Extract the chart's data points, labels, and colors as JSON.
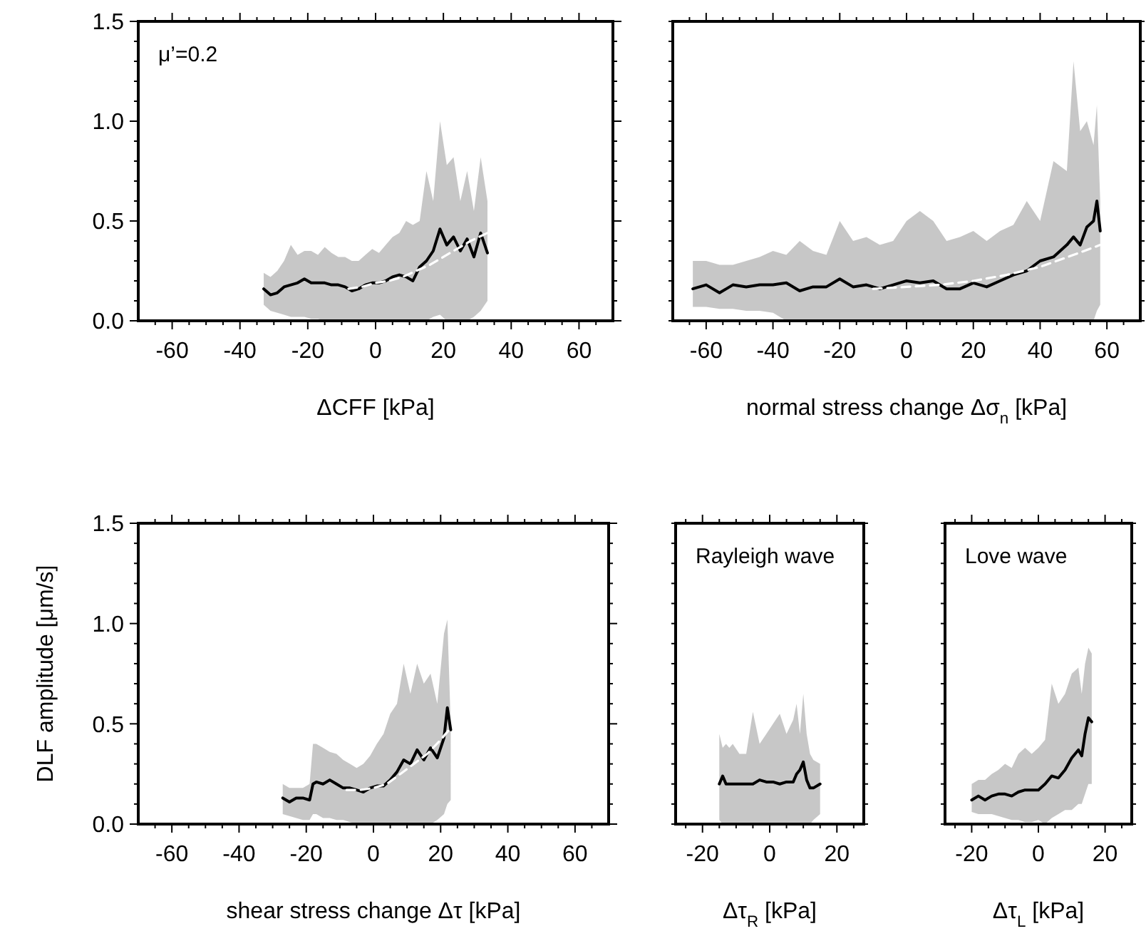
{
  "chart_data": [
    {
      "type": "line",
      "xlabel": "ΔCFF [kPa]",
      "annotations": [
        "μ’=0.2"
      ],
      "xlim": [
        -70,
        70
      ],
      "ylim": [
        0,
        1.5
      ],
      "xticks": [
        {
          "value": -65,
          "label": null
        },
        -60,
        {
          "value": -55,
          "label": null
        },
        {
          "value": -50,
          "label": null
        },
        {
          "value": -45,
          "label": null
        },
        -40,
        {
          "value": -35,
          "label": null
        },
        {
          "value": -30,
          "label": null
        },
        {
          "value": -25,
          "label": null
        },
        -20,
        {
          "value": -15,
          "label": null
        },
        {
          "value": -10,
          "label": null
        },
        {
          "value": -5,
          "label": null
        },
        0,
        {
          "value": 5,
          "label": null
        },
        {
          "value": 10,
          "label": null
        },
        {
          "value": 15,
          "label": null
        },
        20,
        {
          "value": 25,
          "label": null
        },
        {
          "value": 30,
          "label": null
        },
        {
          "value": 35,
          "label": null
        },
        40,
        {
          "value": 45,
          "label": null
        },
        {
          "value": 50,
          "label": null
        },
        {
          "value": 55,
          "label": null
        },
        60,
        {
          "value": 65,
          "label": null
        }
      ],
      "yticks": [
        {
          "value": 0,
          "label": "0.0"
        },
        {
          "value": 0.1,
          "label": null
        },
        {
          "value": 0.2,
          "label": null
        },
        {
          "value": 0.3,
          "label": null
        },
        {
          "value": 0.4,
          "label": null
        },
        {
          "value": 0.5,
          "label": "0.5"
        },
        {
          "value": 0.6,
          "label": null
        },
        {
          "value": 0.7,
          "label": null
        },
        {
          "value": 0.8,
          "label": null
        },
        {
          "value": 0.9,
          "label": null
        },
        {
          "value": 1,
          "label": "1.0"
        },
        {
          "value": 1.1,
          "label": null
        },
        {
          "value": 1.2,
          "label": null
        },
        {
          "value": 1.3,
          "label": null
        },
        {
          "value": 1.4,
          "label": null
        },
        {
          "value": 1.5,
          "label": "1.5"
        }
      ],
      "series": [
        {
          "color": "#000000",
          "x": [
            -33,
            -31,
            -29,
            -27,
            -25,
            -23,
            -21,
            -19,
            -17,
            -15,
            -13,
            -11,
            -9,
            -7,
            -5,
            -3,
            -1,
            1,
            3,
            5,
            7,
            9,
            11,
            13,
            15,
            17,
            19,
            21,
            23,
            25,
            27,
            29,
            31,
            33
          ],
          "values": [
            0.16,
            0.13,
            0.14,
            0.17,
            0.18,
            0.19,
            0.21,
            0.19,
            0.19,
            0.19,
            0.18,
            0.18,
            0.17,
            0.15,
            0.16,
            0.18,
            0.19,
            0.19,
            0.2,
            0.22,
            0.23,
            0.22,
            0.2,
            0.27,
            0.3,
            0.35,
            0.46,
            0.38,
            0.42,
            0.35,
            0.41,
            0.32,
            0.44,
            0.34
          ],
          "upper": [
            0.24,
            0.22,
            0.25,
            0.3,
            0.38,
            0.33,
            0.35,
            0.35,
            0.33,
            0.37,
            0.34,
            0.32,
            0.32,
            0.3,
            0.3,
            0.33,
            0.36,
            0.34,
            0.38,
            0.42,
            0.44,
            0.5,
            0.48,
            0.5,
            0.75,
            0.6,
            1.0,
            0.78,
            0.82,
            0.6,
            0.75,
            0.55,
            0.82,
            0.6
          ],
          "lower": [
            0.08,
            0.05,
            0.04,
            0.03,
            0.02,
            0.02,
            0.02,
            0.01,
            0.01,
            0,
            0,
            0,
            0,
            0,
            0,
            0,
            0,
            0,
            0,
            0,
            0,
            0,
            0,
            0,
            0,
            0.02,
            0.03,
            0,
            0,
            0,
            0,
            0.02,
            0.05,
            0.1
          ]
        },
        {
          "type": "line",
          "color": "#ffffff",
          "line_style": "dashed",
          "x": [
            -8,
            -4,
            0,
            4,
            8,
            12,
            16,
            20,
            24,
            28,
            33
          ],
          "values": [
            0.16,
            0.17,
            0.19,
            0.2,
            0.22,
            0.25,
            0.28,
            0.32,
            0.36,
            0.4,
            0.44
          ]
        }
      ]
    },
    {
      "type": "line",
      "xlabel": "normal stress change Δσ$_{n}$ [kPa]",
      "tick_labels": "x",
      "xlim": [
        -70,
        70
      ],
      "ylim": [
        0,
        1.5
      ],
      "xticks": [
        {
          "value": -65,
          "label": null
        },
        -60,
        {
          "value": -55,
          "label": null
        },
        {
          "value": -50,
          "label": null
        },
        {
          "value": -45,
          "label": null
        },
        -40,
        {
          "value": -35,
          "label": null
        },
        {
          "value": -30,
          "label": null
        },
        {
          "value": -25,
          "label": null
        },
        -20,
        {
          "value": -15,
          "label": null
        },
        {
          "value": -10,
          "label": null
        },
        {
          "value": -5,
          "label": null
        },
        0,
        {
          "value": 5,
          "label": null
        },
        {
          "value": 10,
          "label": null
        },
        {
          "value": 15,
          "label": null
        },
        20,
        {
          "value": 25,
          "label": null
        },
        {
          "value": 30,
          "label": null
        },
        {
          "value": 35,
          "label": null
        },
        40,
        {
          "value": 45,
          "label": null
        },
        {
          "value": 50,
          "label": null
        },
        {
          "value": 55,
          "label": null
        },
        60,
        {
          "value": 65,
          "label": null
        }
      ],
      "yticks": [
        {
          "value": 0,
          "label": null
        },
        {
          "value": 0.1,
          "label": null
        },
        {
          "value": 0.2,
          "label": null
        },
        {
          "value": 0.3,
          "label": null
        },
        {
          "value": 0.4,
          "label": null
        },
        {
          "value": 0.5,
          "label": null
        },
        {
          "value": 0.6,
          "label": null
        },
        {
          "value": 0.7,
          "label": null
        },
        {
          "value": 0.8,
          "label": null
        },
        {
          "value": 0.9,
          "label": null
        },
        {
          "value": 1,
          "label": null
        },
        {
          "value": 1.1,
          "label": null
        },
        {
          "value": 1.2,
          "label": null
        },
        {
          "value": 1.3,
          "label": null
        },
        {
          "value": 1.4,
          "label": null
        },
        {
          "value": 1.5,
          "label": null
        }
      ],
      "series": [
        {
          "color": "#000000",
          "x": [
            -64,
            -60,
            -56,
            -52,
            -48,
            -44,
            -40,
            -36,
            -32,
            -28,
            -24,
            -20,
            -16,
            -12,
            -8,
            -4,
            0,
            4,
            8,
            12,
            16,
            20,
            24,
            28,
            32,
            36,
            40,
            44,
            48,
            50,
            52,
            54,
            56,
            57,
            58
          ],
          "values": [
            0.16,
            0.18,
            0.14,
            0.18,
            0.17,
            0.18,
            0.18,
            0.19,
            0.15,
            0.17,
            0.17,
            0.21,
            0.17,
            0.18,
            0.16,
            0.18,
            0.2,
            0.19,
            0.2,
            0.16,
            0.16,
            0.19,
            0.17,
            0.2,
            0.23,
            0.25,
            0.3,
            0.32,
            0.38,
            0.42,
            0.38,
            0.47,
            0.5,
            0.6,
            0.45
          ],
          "upper": [
            0.3,
            0.3,
            0.28,
            0.28,
            0.3,
            0.32,
            0.35,
            0.33,
            0.4,
            0.35,
            0.33,
            0.5,
            0.4,
            0.42,
            0.38,
            0.4,
            0.5,
            0.55,
            0.5,
            0.4,
            0.42,
            0.45,
            0.4,
            0.45,
            0.48,
            0.6,
            0.5,
            0.8,
            0.75,
            1.3,
            0.95,
            1.0,
            0.88,
            1.08,
            0.6
          ],
          "lower": [
            0.07,
            0.07,
            0.06,
            0.06,
            0.05,
            0.05,
            0.04,
            0,
            0,
            0,
            0,
            0,
            0,
            0,
            0,
            0,
            0,
            0,
            0,
            0,
            0,
            0,
            0,
            0,
            0,
            0,
            0,
            0,
            0,
            0,
            0,
            0,
            0,
            0.05,
            0.08
          ]
        },
        {
          "type": "line",
          "color": "#ffffff",
          "line_style": "dashed",
          "x": [
            -10,
            0,
            10,
            20,
            30,
            40,
            50,
            58
          ],
          "values": [
            0.16,
            0.17,
            0.18,
            0.2,
            0.23,
            0.27,
            0.33,
            0.38
          ]
        }
      ]
    },
    {
      "type": "line",
      "xlabel": "shear stress change Δτ [kPa]",
      "ylabel": "DLF amplitude [μm/s]",
      "xlim": [
        -70,
        70
      ],
      "ylim": [
        0,
        1.5
      ],
      "xticks": [
        {
          "value": -65,
          "label": null
        },
        -60,
        {
          "value": -55,
          "label": null
        },
        {
          "value": -50,
          "label": null
        },
        {
          "value": -45,
          "label": null
        },
        -40,
        {
          "value": -35,
          "label": null
        },
        {
          "value": -30,
          "label": null
        },
        {
          "value": -25,
          "label": null
        },
        -20,
        {
          "value": -15,
          "label": null
        },
        {
          "value": -10,
          "label": null
        },
        {
          "value": -5,
          "label": null
        },
        0,
        {
          "value": 5,
          "label": null
        },
        {
          "value": 10,
          "label": null
        },
        {
          "value": 15,
          "label": null
        },
        20,
        {
          "value": 25,
          "label": null
        },
        {
          "value": 30,
          "label": null
        },
        {
          "value": 35,
          "label": null
        },
        40,
        {
          "value": 45,
          "label": null
        },
        {
          "value": 50,
          "label": null
        },
        {
          "value": 55,
          "label": null
        },
        60,
        {
          "value": 65,
          "label": null
        }
      ],
      "yticks": [
        {
          "value": 0,
          "label": "0.0"
        },
        {
          "value": 0.1,
          "label": null
        },
        {
          "value": 0.2,
          "label": null
        },
        {
          "value": 0.3,
          "label": null
        },
        {
          "value": 0.4,
          "label": null
        },
        {
          "value": 0.5,
          "label": "0.5"
        },
        {
          "value": 0.6,
          "label": null
        },
        {
          "value": 0.7,
          "label": null
        },
        {
          "value": 0.8,
          "label": null
        },
        {
          "value": 0.9,
          "label": null
        },
        {
          "value": 1,
          "label": "1.0"
        },
        {
          "value": 1.1,
          "label": null
        },
        {
          "value": 1.2,
          "label": null
        },
        {
          "value": 1.3,
          "label": null
        },
        {
          "value": 1.4,
          "label": null
        },
        {
          "value": 1.5,
          "label": "1.5"
        }
      ],
      "series": [
        {
          "color": "#000000",
          "x": [
            -27,
            -25,
            -23,
            -21,
            -19,
            -18,
            -17,
            -15,
            -13,
            -11,
            -9,
            -7,
            -5,
            -3,
            -1,
            1,
            3,
            5,
            7,
            9,
            11,
            13,
            15,
            17,
            19,
            21,
            22,
            23
          ],
          "values": [
            0.13,
            0.11,
            0.13,
            0.13,
            0.12,
            0.2,
            0.21,
            0.2,
            0.22,
            0.2,
            0.18,
            0.18,
            0.17,
            0.16,
            0.18,
            0.19,
            0.19,
            0.22,
            0.26,
            0.32,
            0.3,
            0.37,
            0.32,
            0.38,
            0.33,
            0.43,
            0.58,
            0.47
          ],
          "upper": [
            0.2,
            0.18,
            0.18,
            0.18,
            0.2,
            0.4,
            0.4,
            0.38,
            0.36,
            0.35,
            0.32,
            0.3,
            0.28,
            0.3,
            0.34,
            0.4,
            0.45,
            0.55,
            0.6,
            0.8,
            0.65,
            0.8,
            0.7,
            0.75,
            0.6,
            0.95,
            1.02,
            0.5
          ],
          "lower": [
            0.05,
            0.04,
            0.03,
            0.02,
            0.02,
            0.05,
            0.05,
            0.03,
            0.03,
            0.02,
            0.02,
            0.01,
            0,
            0,
            0,
            0,
            0,
            0,
            0,
            0,
            0,
            0,
            0,
            0,
            0.02,
            0.05,
            0.1,
            0.12
          ]
        },
        {
          "type": "line",
          "color": "#ffffff",
          "line_style": "dashed",
          "x": [
            -8,
            -4,
            0,
            4,
            8,
            12,
            16,
            20,
            23
          ],
          "values": [
            0.17,
            0.17,
            0.18,
            0.2,
            0.25,
            0.3,
            0.35,
            0.42,
            0.48
          ]
        }
      ]
    },
    {
      "type": "line",
      "xlabel": "Δτ$_{R}$ [kPa]",
      "annotations": [
        "Rayleigh wave"
      ],
      "tick_labels": "x",
      "xlim": [
        -28,
        28
      ],
      "ylim": [
        0,
        1.5
      ],
      "xticks": [
        {
          "value": -25,
          "label": null
        },
        -20,
        {
          "value": -15,
          "label": null
        },
        {
          "value": -10,
          "label": null
        },
        {
          "value": -5,
          "label": null
        },
        0,
        {
          "value": 5,
          "label": null
        },
        {
          "value": 10,
          "label": null
        },
        {
          "value": 15,
          "label": null
        },
        20,
        {
          "value": 25,
          "label": null
        }
      ],
      "yticks": [
        {
          "value": 0,
          "label": null
        },
        {
          "value": 0.1,
          "label": null
        },
        {
          "value": 0.2,
          "label": null
        },
        {
          "value": 0.3,
          "label": null
        },
        {
          "value": 0.4,
          "label": null
        },
        {
          "value": 0.5,
          "label": null
        },
        {
          "value": 0.6,
          "label": null
        },
        {
          "value": 0.7,
          "label": null
        },
        {
          "value": 0.8,
          "label": null
        },
        {
          "value": 0.9,
          "label": null
        },
        {
          "value": 1,
          "label": null
        },
        {
          "value": 1.1,
          "label": null
        },
        {
          "value": 1.2,
          "label": null
        },
        {
          "value": 1.3,
          "label": null
        },
        {
          "value": 1.4,
          "label": null
        },
        {
          "value": 1.5,
          "label": null
        }
      ],
      "series": [
        {
          "color": "#000000",
          "x": [
            -15,
            -14,
            -13,
            -12,
            -11,
            -9,
            -7,
            -5,
            -3,
            -1,
            1,
            3,
            5,
            7,
            8,
            9,
            10,
            11,
            12,
            13,
            15
          ],
          "values": [
            0.2,
            0.24,
            0.2,
            0.2,
            0.2,
            0.2,
            0.2,
            0.2,
            0.22,
            0.21,
            0.21,
            0.2,
            0.21,
            0.21,
            0.25,
            0.27,
            0.31,
            0.22,
            0.18,
            0.18,
            0.2
          ],
          "upper": [
            0.45,
            0.38,
            0.4,
            0.38,
            0.4,
            0.35,
            0.35,
            0.56,
            0.4,
            0.45,
            0.5,
            0.55,
            0.45,
            0.52,
            0.6,
            0.45,
            0.65,
            0.45,
            0.35,
            0.32,
            0.3
          ],
          "lower": [
            0.02,
            0,
            0,
            0,
            0,
            0,
            0,
            0,
            0,
            0,
            0,
            0,
            0,
            0,
            0,
            0,
            0,
            0,
            0,
            0.02,
            0.05
          ]
        }
      ]
    },
    {
      "type": "line",
      "xlabel": "Δτ$_{L}$ [kPa]",
      "annotations": [
        "Love wave"
      ],
      "tick_labels": "x",
      "xlim": [
        -28,
        28
      ],
      "ylim": [
        0,
        1.5
      ],
      "xticks": [
        {
          "value": -25,
          "label": null
        },
        -20,
        {
          "value": -15,
          "label": null
        },
        {
          "value": -10,
          "label": null
        },
        {
          "value": -5,
          "label": null
        },
        0,
        {
          "value": 5,
          "label": null
        },
        {
          "value": 10,
          "label": null
        },
        {
          "value": 15,
          "label": null
        },
        20,
        {
          "value": 25,
          "label": null
        }
      ],
      "yticks": [
        {
          "value": 0,
          "label": null
        },
        {
          "value": 0.1,
          "label": null
        },
        {
          "value": 0.2,
          "label": null
        },
        {
          "value": 0.3,
          "label": null
        },
        {
          "value": 0.4,
          "label": null
        },
        {
          "value": 0.5,
          "label": null
        },
        {
          "value": 0.6,
          "label": null
        },
        {
          "value": 0.7,
          "label": null
        },
        {
          "value": 0.8,
          "label": null
        },
        {
          "value": 0.9,
          "label": null
        },
        {
          "value": 1,
          "label": null
        },
        {
          "value": 1.1,
          "label": null
        },
        {
          "value": 1.2,
          "label": null
        },
        {
          "value": 1.3,
          "label": null
        },
        {
          "value": 1.4,
          "label": null
        },
        {
          "value": 1.5,
          "label": null
        }
      ],
      "series": [
        {
          "color": "#000000",
          "x": [
            -20,
            -18,
            -16,
            -14,
            -12,
            -10,
            -8,
            -6,
            -4,
            -2,
            0,
            2,
            4,
            6,
            8,
            10,
            12,
            13,
            14,
            15,
            16
          ],
          "values": [
            0.12,
            0.14,
            0.12,
            0.14,
            0.15,
            0.15,
            0.14,
            0.16,
            0.17,
            0.17,
            0.17,
            0.2,
            0.24,
            0.23,
            0.27,
            0.33,
            0.37,
            0.34,
            0.45,
            0.53,
            0.51
          ],
          "upper": [
            0.2,
            0.22,
            0.22,
            0.25,
            0.27,
            0.3,
            0.28,
            0.35,
            0.38,
            0.35,
            0.38,
            0.42,
            0.7,
            0.6,
            0.65,
            0.75,
            0.78,
            0.65,
            0.8,
            0.88,
            0.85
          ],
          "lower": [
            0.06,
            0.05,
            0.05,
            0.05,
            0.04,
            0.03,
            0.02,
            0.02,
            0.01,
            0.01,
            0.02,
            0,
            0.03,
            0.05,
            0.07,
            0.07,
            0.1,
            0.1,
            0.15,
            0.2,
            0.2
          ]
        }
      ]
    }
  ]
}
